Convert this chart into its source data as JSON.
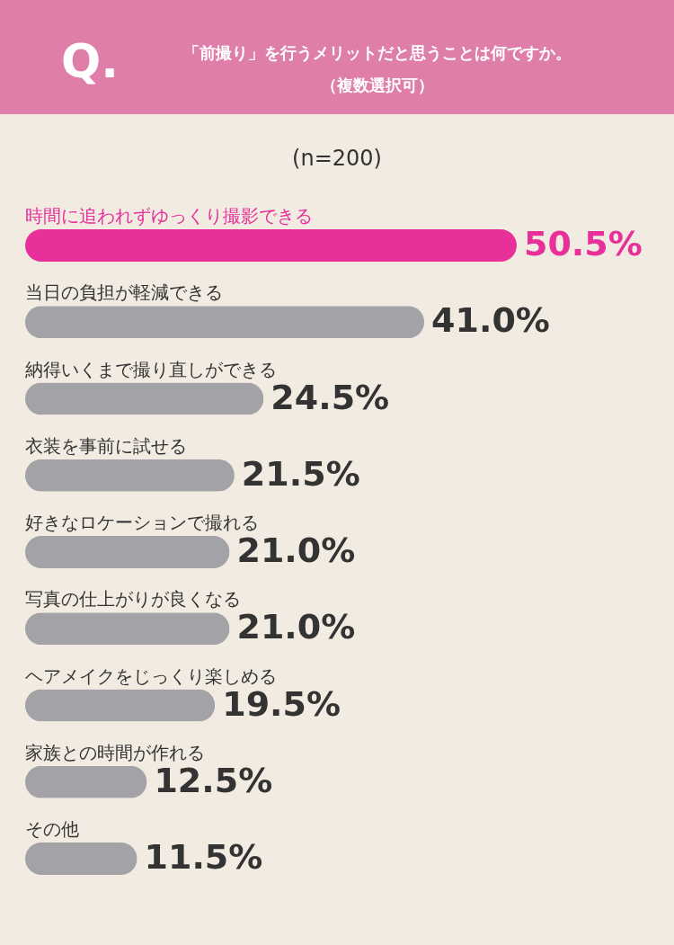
{
  "chart_data": {
    "type": "bar",
    "orientation": "horizontal",
    "title": "「前撮り」を行うメリットだと思うことは何ですか。",
    "subtitle": "(n=200)",
    "annotations": [
      "Q.",
      "（複数選択可）"
    ],
    "categories": [
      "時間に追われずゆっくり撮影できる",
      "当日の負担が軽減できる",
      "納得いくまで撮り直しができる",
      "衣装を事前に試せる",
      "好きなロケーションで撮れる",
      "写真の仕上がりが良くなる",
      "ヘアメイクをじっくり楽しめる",
      "家族との時間が作れる",
      "その他"
    ],
    "values": [
      50.5,
      41.0,
      24.5,
      21.5,
      21.0,
      21.0,
      19.5,
      12.5,
      11.5
    ],
    "value_labels": [
      "50.5%",
      "41.0%",
      "24.5%",
      "21.5%",
      "21.0%",
      "21.0%",
      "19.5%",
      "12.5%",
      "11.5%"
    ],
    "colors": [
      "#e8309a",
      "#a3a3a7",
      "#a3a3a7",
      "#a3a3a7",
      "#a3a3a7",
      "#a3a3a7",
      "#a3a3a7",
      "#a3a3a7",
      "#a3a3a7"
    ]
  }
}
